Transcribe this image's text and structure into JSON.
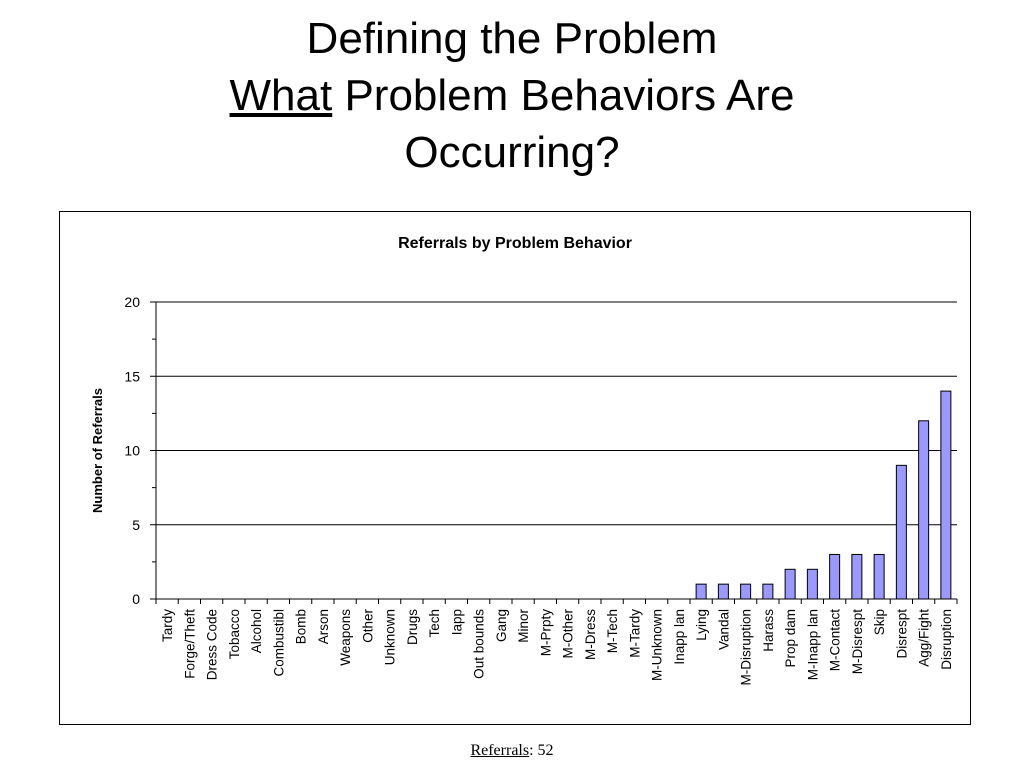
{
  "slide": {
    "title_line1": "Defining the Problem",
    "title_emphasis": "What",
    "title_line2_rest": " Problem Behaviors Are",
    "title_line3": "Occurring?"
  },
  "chart_data": {
    "type": "bar",
    "title": "Referrals by Problem Behavior",
    "xlabel": "",
    "ylabel": "Number of Referrals",
    "ylim": [
      0,
      20
    ],
    "yticks": [
      0,
      5,
      10,
      15,
      20
    ],
    "grid": true,
    "categories": [
      "Tardy",
      "Forge/Theft",
      "Dress Code",
      "Tobacco",
      "Alcohol",
      "Combustibl",
      "Bomb",
      "Arson",
      "Weapons",
      "Other",
      "Unknown",
      "Drugs",
      "Tech",
      "Iapp",
      "Out bounds",
      "Gang",
      "Minor",
      "M-Prpty",
      "M-Other",
      "M-Dress",
      "M-Tech",
      "M-Tardy",
      "M-Unknown",
      "Inapp lan",
      "Lying",
      "Vandal",
      "M-Disruption",
      "Harass",
      "Prop dam",
      "M-Inapp lan",
      "M-Contact",
      "M-Disrespt",
      "Skip",
      "Disrespt",
      "Agg/Fight",
      "Disruption"
    ],
    "values": [
      0,
      0,
      0,
      0,
      0,
      0,
      0,
      0,
      0,
      0,
      0,
      0,
      0,
      0,
      0,
      0,
      0,
      0,
      0,
      0,
      0,
      0,
      0,
      0,
      1,
      1,
      1,
      1,
      2,
      2,
      3,
      3,
      3,
      9,
      12,
      14
    ],
    "bar_color": "#9999ff"
  },
  "footnote": {
    "label": "Referrals",
    "value": ": 52"
  }
}
